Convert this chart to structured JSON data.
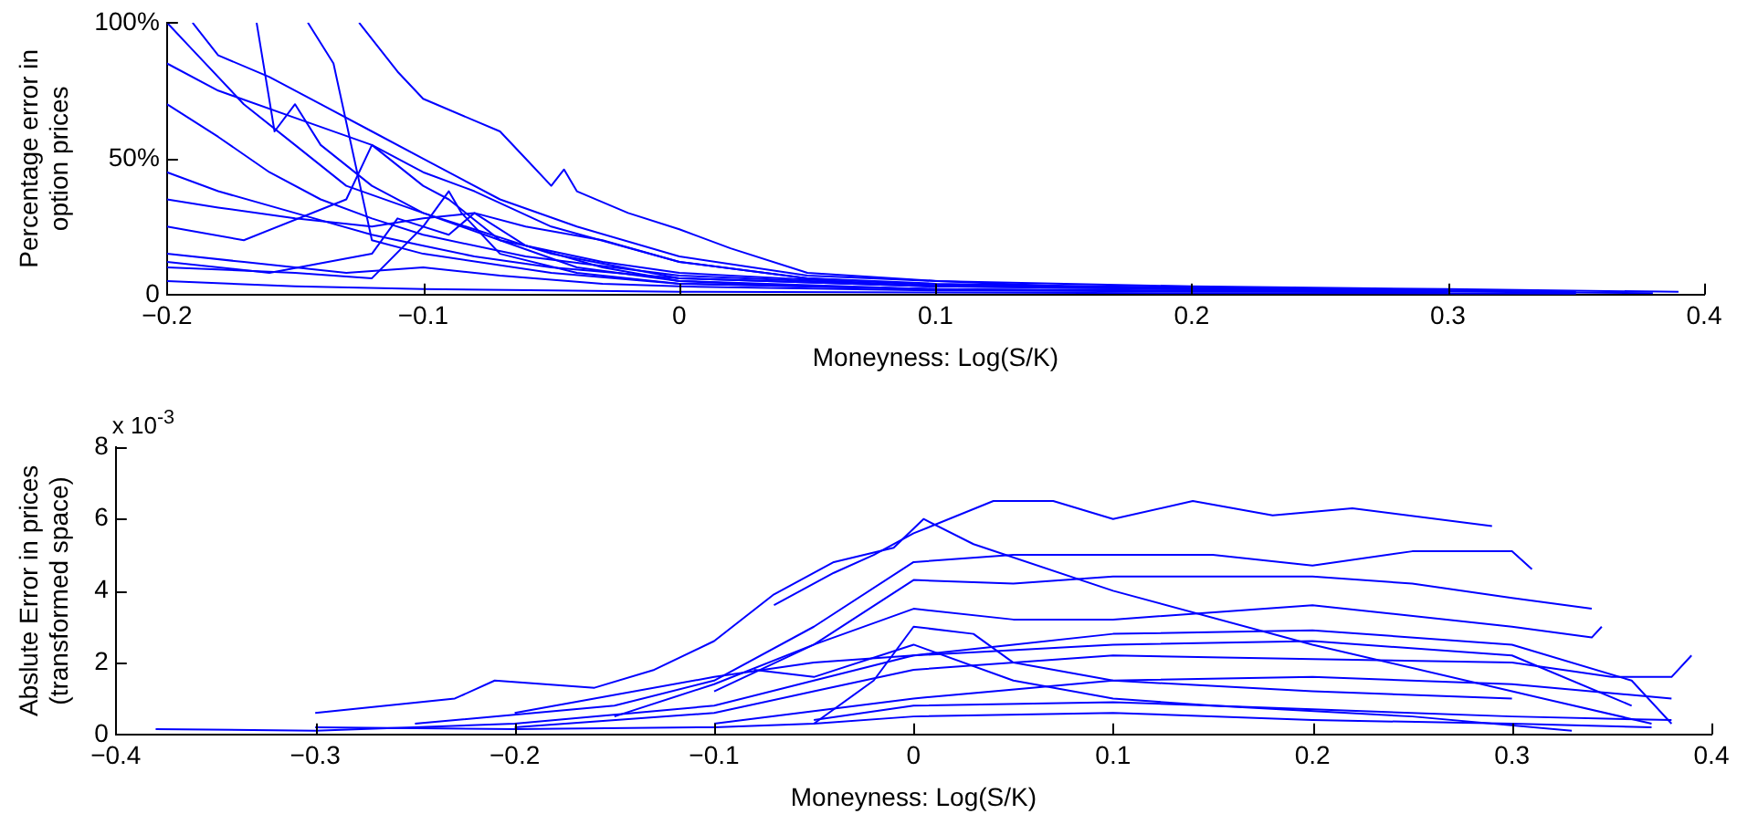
{
  "chart_data": [
    {
      "type": "line",
      "xlabel": "Moneyness: Log(S/K)",
      "ylabel": "Percentage error in\noption prices",
      "xlim": [
        -0.2,
        0.4
      ],
      "ylim": [
        0,
        100
      ],
      "xticks": [
        {
          "value": -0.2,
          "label": "−0.2"
        },
        {
          "value": -0.1,
          "label": "−0.1"
        },
        0,
        0.1,
        0.2,
        0.3,
        0.4
      ],
      "yticks": [
        0,
        {
          "value": 50,
          "label": "50%"
        },
        {
          "value": 100,
          "label": "100%"
        }
      ],
      "grid": false,
      "legend": false,
      "series": [
        {
          "color": "#0000ff",
          "x": [
            -0.125,
            -0.11,
            -0.1,
            -0.08,
            -0.07,
            -0.06,
            -0.05,
            -0.045,
            -0.04,
            -0.02,
            0,
            0.02,
            0.05,
            0.1,
            0.2,
            0.3,
            0.39
          ],
          "values": [
            100,
            82,
            72,
            64,
            60,
            50,
            40,
            46,
            38,
            30,
            24,
            17,
            8,
            5,
            3,
            2,
            1
          ]
        },
        {
          "color": "#0000ff",
          "x": [
            -0.2,
            -0.18,
            -0.15,
            -0.12,
            -0.1,
            -0.08,
            -0.05,
            0,
            0.05,
            0.1,
            0.2,
            0.35
          ],
          "values": [
            85,
            75,
            65,
            55,
            45,
            38,
            25,
            12,
            6,
            4,
            2.5,
            1
          ]
        },
        {
          "color": "#0000ff",
          "x": [
            -0.19,
            -0.18,
            -0.16,
            -0.14,
            -0.12,
            -0.1,
            -0.07,
            -0.04,
            0,
            0.05,
            0.15,
            0.3
          ],
          "values": [
            100,
            88,
            80,
            70,
            60,
            50,
            35,
            25,
            14,
            7,
            3,
            1.5
          ]
        },
        {
          "color": "#0000ff",
          "x": [
            -0.2,
            -0.18,
            -0.15,
            -0.12,
            -0.1,
            -0.08,
            -0.05,
            0,
            0.1,
            0.25,
            0.38
          ],
          "values": [
            45,
            38,
            30,
            22,
            18,
            14,
            10,
            6,
            3,
            1.5,
            0.5
          ]
        },
        {
          "color": "#0000ff",
          "x": [
            -0.145,
            -0.135,
            -0.12,
            -0.1,
            -0.05,
            0,
            0.1,
            0.3
          ],
          "values": [
            100,
            85,
            20,
            15,
            8,
            4,
            2,
            1
          ]
        },
        {
          "color": "#0000ff",
          "x": [
            -0.2,
            -0.17,
            -0.13,
            -0.12,
            -0.1,
            -0.09,
            -0.07,
            -0.04,
            0,
            0.1
          ],
          "values": [
            25,
            20,
            35,
            55,
            40,
            35,
            20,
            10,
            5,
            2
          ]
        },
        {
          "color": "#0000ff",
          "x": [
            -0.2,
            -0.15,
            -0.12,
            -0.1,
            -0.09,
            -0.085,
            -0.07,
            -0.04,
            0,
            0.1
          ],
          "values": [
            10,
            8,
            6,
            25,
            38,
            30,
            15,
            8,
            4,
            2
          ]
        },
        {
          "color": "#0000ff",
          "x": [
            -0.2,
            -0.15,
            -0.1,
            -0.05,
            0,
            0.1,
            0.2,
            0.35
          ],
          "values": [
            5,
            3,
            2,
            1.5,
            1,
            0.8,
            0.5,
            0.3
          ]
        },
        {
          "color": "#0000ff",
          "x": [
            -0.2,
            -0.17,
            -0.13,
            -0.1,
            -0.07,
            -0.03,
            0,
            0.1,
            0.3
          ],
          "values": [
            15,
            12,
            8,
            10,
            7,
            4,
            3,
            1.5,
            0.8
          ]
        },
        {
          "color": "#0000ff",
          "x": [
            -0.2,
            -0.18,
            -0.16,
            -0.14,
            -0.12,
            -0.1,
            -0.06,
            0,
            0.1,
            0.2
          ],
          "values": [
            70,
            58,
            45,
            35,
            28,
            22,
            14,
            7,
            3,
            2
          ]
        },
        {
          "color": "#0000ff",
          "x": [
            -0.2,
            -0.18,
            -0.15,
            -0.12,
            -0.1,
            -0.08,
            -0.06,
            -0.03,
            0,
            0.05,
            0.1,
            0.2,
            0.3
          ],
          "values": [
            35,
            32,
            28,
            25,
            28,
            30,
            25,
            20,
            12,
            6,
            3.5,
            2,
            1
          ]
        },
        {
          "color": "#0000ff",
          "x": [
            -0.2,
            -0.19,
            -0.17,
            -0.15,
            -0.13,
            -0.1,
            -0.07,
            -0.03,
            0,
            0.1
          ],
          "values": [
            100,
            90,
            70,
            55,
            40,
            30,
            20,
            12,
            8,
            3
          ]
        },
        {
          "color": "#0000ff",
          "x": [
            -0.165,
            -0.158,
            -0.15,
            -0.14,
            -0.12,
            -0.1,
            -0.05,
            0,
            0.1
          ],
          "values": [
            100,
            60,
            70,
            55,
            40,
            30,
            15,
            6,
            3
          ]
        },
        {
          "color": "#0000ff",
          "x": [
            -0.2,
            -0.16,
            -0.12,
            -0.11,
            -0.09,
            -0.08,
            -0.06,
            -0.03,
            0,
            0.05
          ],
          "values": [
            12,
            8,
            15,
            28,
            22,
            30,
            18,
            10,
            5,
            3
          ]
        }
      ]
    },
    {
      "type": "line",
      "xlabel": "Moneyness: Log(S/K)",
      "ylabel": "Abslute Error in prices\n(transformed space)",
      "annotations": [
        "x 10$^{-3}$"
      ],
      "xlim": [
        -0.4,
        0.4
      ],
      "ylim": [
        0,
        8
      ],
      "xticks": [
        {
          "value": -0.4,
          "label": "−0.4"
        },
        {
          "value": -0.3,
          "label": "−0.3"
        },
        {
          "value": -0.2,
          "label": "−0.2"
        },
        {
          "value": -0.1,
          "label": "−0.1"
        },
        0,
        0.1,
        0.2,
        0.3,
        0.4
      ],
      "yticks": [
        0,
        2,
        4,
        6,
        8
      ],
      "grid": false,
      "legend": false,
      "series": [
        {
          "color": "#0000ff",
          "x": [
            -0.07,
            -0.04,
            -0.02,
            0,
            0.04,
            0.07,
            0.1,
            0.14,
            0.18,
            0.22,
            0.29
          ],
          "values": [
            3.6,
            4.5,
            5,
            5.6,
            6.5,
            6.5,
            6.0,
            6.5,
            6.1,
            6.3,
            5.8
          ]
        },
        {
          "color": "#0000ff",
          "x": [
            -0.3,
            -0.23,
            -0.21,
            -0.16,
            -0.13,
            -0.1,
            -0.07,
            -0.04,
            -0.01,
            0.005,
            0.03,
            0.1,
            0.2,
            0.3,
            0.37
          ],
          "values": [
            0.6,
            1.0,
            1.5,
            1.3,
            1.8,
            2.6,
            3.9,
            4.8,
            5.2,
            6.0,
            5.3,
            4.0,
            2.5,
            1.2,
            0.3
          ]
        },
        {
          "color": "#0000ff",
          "x": [
            -0.25,
            -0.15,
            -0.1,
            -0.05,
            0,
            0.05,
            0.1,
            0.15,
            0.2,
            0.25,
            0.3,
            0.31
          ],
          "values": [
            0.3,
            0.8,
            1.5,
            3.0,
            4.8,
            5.0,
            5.0,
            5.0,
            4.7,
            5.1,
            5.1,
            4.6
          ]
        },
        {
          "color": "#0000ff",
          "x": [
            -0.1,
            -0.05,
            0,
            0.05,
            0.1,
            0.15,
            0.2,
            0.25,
            0.3,
            0.34
          ],
          "values": [
            1.2,
            2.5,
            4.3,
            4.2,
            4.4,
            4.4,
            4.4,
            4.2,
            3.8,
            3.5
          ]
        },
        {
          "color": "#0000ff",
          "x": [
            -0.15,
            -0.1,
            -0.05,
            0,
            0.05,
            0.1,
            0.2,
            0.3,
            0.34,
            0.345
          ],
          "values": [
            0.5,
            1.4,
            2.5,
            3.5,
            3.2,
            3.2,
            3.6,
            3.0,
            2.7,
            3.0
          ]
        },
        {
          "color": "#0000ff",
          "x": [
            -0.38,
            -0.3,
            -0.2,
            -0.1,
            -0.05,
            0,
            0.05,
            0.1,
            0.2,
            0.3,
            0.36,
            0.38
          ],
          "values": [
            0.15,
            0.1,
            0.3,
            0.8,
            1.5,
            2.2,
            2.5,
            2.8,
            2.9,
            2.5,
            1.5,
            0.3
          ]
        },
        {
          "color": "#0000ff",
          "x": [
            -0.2,
            -0.1,
            -0.05,
            0,
            0.1,
            0.2,
            0.3,
            0.35,
            0.38,
            0.39
          ],
          "values": [
            0.2,
            0.6,
            1.2,
            1.8,
            2.2,
            2.1,
            2.0,
            1.6,
            1.6,
            2.2
          ]
        },
        {
          "color": "#0000ff",
          "x": [
            -0.1,
            0,
            0.1,
            0.2,
            0.3,
            0.38
          ],
          "values": [
            0.3,
            1.0,
            1.5,
            1.6,
            1.4,
            1.0
          ]
        },
        {
          "color": "#0000ff",
          "x": [
            -0.05,
            0,
            0.1,
            0.2,
            0.3,
            0.38
          ],
          "values": [
            0.4,
            0.8,
            0.9,
            0.7,
            0.5,
            0.4
          ]
        },
        {
          "color": "#0000ff",
          "x": [
            -0.08,
            -0.05,
            0,
            0.05,
            0.1,
            0.15,
            0.25,
            0.33
          ],
          "values": [
            1.8,
            1.6,
            2.5,
            1.5,
            1.0,
            0.8,
            0.5,
            0.1
          ]
        },
        {
          "color": "#0000ff",
          "x": [
            -0.05,
            -0.02,
            0,
            0.03,
            0.05,
            0.1,
            0.2,
            0.3
          ],
          "values": [
            0.3,
            1.5,
            3.0,
            2.8,
            2.0,
            1.5,
            1.2,
            1.0
          ]
        },
        {
          "color": "#0000ff",
          "x": [
            -0.3,
            -0.2,
            -0.1,
            -0.05,
            0,
            0.1,
            0.2,
            0.3,
            0.37
          ],
          "values": [
            0.2,
            0.15,
            0.2,
            0.3,
            0.5,
            0.6,
            0.4,
            0.3,
            0.2
          ]
        },
        {
          "color": "#0000ff",
          "x": [
            -0.2,
            -0.1,
            -0.05,
            0,
            0.1,
            0.2,
            0.3,
            0.36
          ],
          "values": [
            0.6,
            1.6,
            2.0,
            2.2,
            2.5,
            2.6,
            2.2,
            0.8
          ]
        }
      ]
    }
  ]
}
